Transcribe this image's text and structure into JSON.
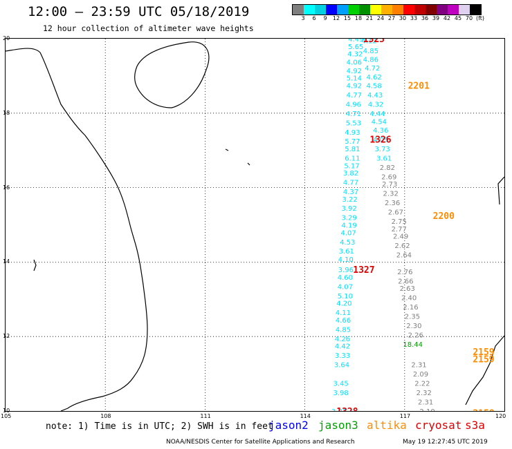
{
  "header": {
    "title": "12:00 – 23:59 UTC 05/18/2019",
    "subtitle": "12 hour collection of altimeter wave heights"
  },
  "colorbar": {
    "colors": [
      "#7f7f7f",
      "#00ffff",
      "#00d0e0",
      "#0000ff",
      "#00a0ff",
      "#00d000",
      "#009000",
      "#ffff00",
      "#ffb000",
      "#ff8000",
      "#ff0000",
      "#c00000",
      "#800000",
      "#800080",
      "#c000c0",
      "#e0d0f0",
      "#000000"
    ],
    "labels": [
      "3",
      "6",
      "9",
      "12",
      "15",
      "18",
      "21",
      "24",
      "27",
      "30",
      "33",
      "36",
      "39",
      "42",
      "45",
      "70",
      "(ft)"
    ]
  },
  "map": {
    "lat_labels": [
      "20",
      "18",
      "16",
      "14",
      "12",
      "10"
    ],
    "lon_labels": [
      "105",
      "108",
      "111",
      "114",
      "117",
      "120"
    ],
    "pass_labels": [
      {
        "text": "1325",
        "color": "#e00000",
        "lon": 115.75,
        "lat": 20.0
      },
      {
        "text": "1326",
        "color": "#e00000",
        "lon": 115.95,
        "lat": 17.3
      },
      {
        "text": "1327",
        "color": "#e00000",
        "lon": 115.45,
        "lat": 13.8
      },
      {
        "text": "1328",
        "color": "#e00000",
        "lon": 114.95,
        "lat": 10.0
      },
      {
        "text": "2201",
        "color": "#ff8c00",
        "lon": 117.1,
        "lat": 18.75
      },
      {
        "text": "2200",
        "color": "#ff8c00",
        "lon": 117.85,
        "lat": 15.25
      },
      {
        "text": "2159",
        "color": "#ff8c00",
        "lon": 119.05,
        "lat": 11.6
      },
      {
        "text": "2159",
        "color": "#ff8c00",
        "lon": 119.05,
        "lat": 11.4
      },
      {
        "text": "2158",
        "color": "#ff8c00",
        "lon": 119.05,
        "lat": 9.95
      }
    ],
    "tracks": [
      {
        "name": "s3a",
        "color": "#00e0ff",
        "points": [
          {
            "v": "4.49",
            "lon": 115.3,
            "lat": 20.0
          },
          {
            "v": "5.65",
            "lon": 115.3,
            "lat": 19.8
          },
          {
            "v": "4.32",
            "lon": 115.28,
            "lat": 19.6
          },
          {
            "v": "4.06",
            "lon": 115.25,
            "lat": 19.38
          },
          {
            "v": "4.92",
            "lon": 115.25,
            "lat": 19.15
          },
          {
            "v": "5.14",
            "lon": 115.25,
            "lat": 18.95
          },
          {
            "v": "4.92",
            "lon": 115.25,
            "lat": 18.75
          },
          {
            "v": "4.77",
            "lon": 115.25,
            "lat": 18.5
          },
          {
            "v": "4.96",
            "lon": 115.23,
            "lat": 18.25
          },
          {
            "v": "4.71",
            "lon": 115.23,
            "lat": 18.0
          },
          {
            "v": "5.53",
            "lon": 115.23,
            "lat": 17.75
          },
          {
            "v": "4.93",
            "lon": 115.2,
            "lat": 17.5
          },
          {
            "v": "5.77",
            "lon": 115.2,
            "lat": 17.25
          },
          {
            "v": "5.81",
            "lon": 115.2,
            "lat": 17.05
          },
          {
            "v": "6.11",
            "lon": 115.2,
            "lat": 16.8
          },
          {
            "v": "5.17",
            "lon": 115.18,
            "lat": 16.6
          },
          {
            "v": "3.82",
            "lon": 115.15,
            "lat": 16.4
          },
          {
            "v": "4.77",
            "lon": 115.15,
            "lat": 16.15
          },
          {
            "v": "4.37",
            "lon": 115.15,
            "lat": 15.9
          },
          {
            "v": "3.22",
            "lon": 115.12,
            "lat": 15.7
          },
          {
            "v": "3.92",
            "lon": 115.1,
            "lat": 15.45
          },
          {
            "v": "3.29",
            "lon": 115.1,
            "lat": 15.2
          },
          {
            "v": "4.19",
            "lon": 115.1,
            "lat": 15.0
          },
          {
            "v": "4.07",
            "lon": 115.08,
            "lat": 14.8
          },
          {
            "v": "4.53",
            "lon": 115.05,
            "lat": 14.55
          },
          {
            "v": "3.61",
            "lon": 115.02,
            "lat": 14.3
          },
          {
            "v": "4.10",
            "lon": 115.0,
            "lat": 14.08
          },
          {
            "v": "3.96",
            "lon": 115.0,
            "lat": 13.8
          },
          {
            "v": "4.60",
            "lon": 114.98,
            "lat": 13.6
          },
          {
            "v": "4.07",
            "lon": 114.98,
            "lat": 13.35
          },
          {
            "v": "5.10",
            "lon": 114.98,
            "lat": 13.1
          },
          {
            "v": "4.20",
            "lon": 114.95,
            "lat": 12.9
          },
          {
            "v": "4.11",
            "lon": 114.92,
            "lat": 12.65
          },
          {
            "v": "4.66",
            "lon": 114.92,
            "lat": 12.45
          },
          {
            "v": "4.85",
            "lon": 114.92,
            "lat": 12.2
          },
          {
            "v": "4.26",
            "lon": 114.9,
            "lat": 11.95
          },
          {
            "v": "4.42",
            "lon": 114.9,
            "lat": 11.75
          },
          {
            "v": "3.33",
            "lon": 114.9,
            "lat": 11.5
          },
          {
            "v": "3.64",
            "lon": 114.88,
            "lat": 11.25
          },
          {
            "v": "3.45",
            "lon": 114.85,
            "lat": 10.75
          },
          {
            "v": "3.98",
            "lon": 114.85,
            "lat": 10.5
          },
          {
            "v": "3.23",
            "lon": 114.8,
            "lat": 10.0
          }
        ]
      },
      {
        "name": "s3a-b",
        "color": "#00e0ff",
        "points": [
          {
            "v": "4.12",
            "lon": 115.7,
            "lat": 19.95
          },
          {
            "v": "4.85",
            "lon": 115.75,
            "lat": 19.68
          },
          {
            "v": "4.86",
            "lon": 115.75,
            "lat": 19.45
          },
          {
            "v": "4.72",
            "lon": 115.8,
            "lat": 19.22
          },
          {
            "v": "4.62",
            "lon": 115.85,
            "lat": 18.98
          },
          {
            "v": "4.58",
            "lon": 115.85,
            "lat": 18.75
          },
          {
            "v": "4.43",
            "lon": 115.88,
            "lat": 18.5
          },
          {
            "v": "4.32",
            "lon": 115.9,
            "lat": 18.25
          },
          {
            "v": "4.44",
            "lon": 115.95,
            "lat": 18.0
          },
          {
            "v": "4.54",
            "lon": 116.0,
            "lat": 17.78
          },
          {
            "v": "4.36",
            "lon": 116.05,
            "lat": 17.55
          },
          {
            "v": "4.05",
            "lon": 116.05,
            "lat": 17.3
          },
          {
            "v": "3.73",
            "lon": 116.1,
            "lat": 17.05
          },
          {
            "v": "3.61",
            "lon": 116.15,
            "lat": 16.8
          }
        ]
      },
      {
        "name": "grey",
        "color": "#808080",
        "points": [
          {
            "v": "2.82",
            "lon": 116.25,
            "lat": 16.55
          },
          {
            "v": "2.69",
            "lon": 116.3,
            "lat": 16.3
          },
          {
            "v": "2.73",
            "lon": 116.32,
            "lat": 16.1
          },
          {
            "v": "2.32",
            "lon": 116.35,
            "lat": 15.85
          },
          {
            "v": "2.36",
            "lon": 116.4,
            "lat": 15.6
          },
          {
            "v": "2.67",
            "lon": 116.5,
            "lat": 15.35
          },
          {
            "v": "2.75",
            "lon": 116.6,
            "lat": 15.1
          },
          {
            "v": "2.77",
            "lon": 116.6,
            "lat": 14.9
          },
          {
            "v": "2.49",
            "lon": 116.65,
            "lat": 14.7
          },
          {
            "v": "2.62",
            "lon": 116.7,
            "lat": 14.45
          },
          {
            "v": "2.64",
            "lon": 116.75,
            "lat": 14.2
          },
          {
            "v": "2.76",
            "lon": 116.78,
            "lat": 13.75
          },
          {
            "v": "2.66",
            "lon": 116.8,
            "lat": 13.5
          },
          {
            "v": "2.63",
            "lon": 116.85,
            "lat": 13.3
          },
          {
            "v": "2.40",
            "lon": 116.9,
            "lat": 13.05
          },
          {
            "v": "2.16",
            "lon": 116.95,
            "lat": 12.8
          },
          {
            "v": "2.35",
            "lon": 117.0,
            "lat": 12.55
          },
          {
            "v": "2.30",
            "lon": 117.05,
            "lat": 12.3
          },
          {
            "v": "2.26",
            "lon": 117.1,
            "lat": 12.05
          },
          {
            "v": "2.31",
            "lon": 117.2,
            "lat": 11.25
          },
          {
            "v": "2.09",
            "lon": 117.25,
            "lat": 11.0
          },
          {
            "v": "2.22",
            "lon": 117.3,
            "lat": 10.75
          },
          {
            "v": "2.32",
            "lon": 117.35,
            "lat": 10.5
          },
          {
            "v": "2.31",
            "lon": 117.4,
            "lat": 10.25
          },
          {
            "v": "2.10",
            "lon": 117.45,
            "lat": 10.0
          }
        ]
      },
      {
        "name": "jason3",
        "color": "#00a000",
        "points": [
          {
            "v": "18.44",
            "lon": 116.95,
            "lat": 11.8
          }
        ]
      }
    ]
  },
  "footer": {
    "note": "note:  1) Time is in UTC; 2) SWH is in feet",
    "satellites": [
      {
        "name": "jason2",
        "color": "#0000ff"
      },
      {
        "name": "jason3",
        "color": "#00a000"
      },
      {
        "name": "altika",
        "color": "#ff8c00"
      },
      {
        "name": "cryosat",
        "color": "#e00000"
      },
      {
        "name": "s3a",
        "color": "#e00000"
      }
    ],
    "credit": "NOAA/NESDIS Center for Satellite Applications and Research",
    "timestamp": "May 19 12:27:45 UTC 2019"
  }
}
